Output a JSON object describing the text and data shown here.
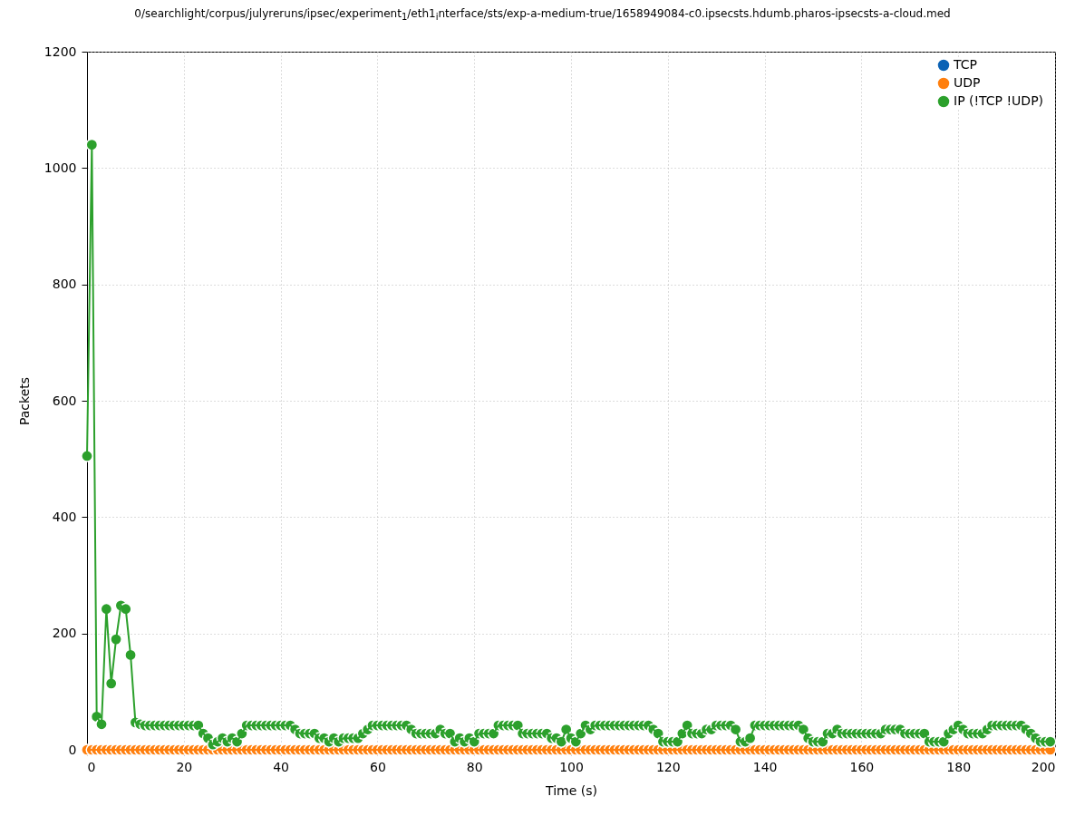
{
  "chart_data": {
    "type": "line",
    "title": "0/searchlight/corpus/julyreruns/ipsec/experiment$_{1}$/eth1$_{i}$nterface/sts/exp-a-medium-true/1658949084-c0.ipsecsts.hdumb.pharos-ipsecsts-a-cloud.med",
    "xlabel": "Time (s)",
    "ylabel": "Packets",
    "x": [
      0,
      1,
      2,
      3,
      4,
      5,
      6,
      7,
      8,
      9,
      10,
      11,
      12,
      13,
      14,
      15,
      16,
      17,
      18,
      19,
      20,
      21,
      22,
      23,
      24,
      25,
      26,
      27,
      28,
      29,
      30,
      31,
      32,
      33,
      34,
      35,
      36,
      37,
      38,
      39,
      40,
      41,
      42,
      43,
      44,
      45,
      46,
      47,
      48,
      49,
      50,
      51,
      52,
      53,
      54,
      55,
      56,
      57,
      58,
      59,
      60,
      61,
      62,
      63,
      64,
      65,
      66,
      67,
      68,
      69,
      70,
      71,
      72,
      73,
      74,
      75,
      76,
      77,
      78,
      79,
      80,
      81,
      82,
      83,
      84,
      85,
      86,
      87,
      88,
      89,
      90,
      91,
      92,
      93,
      94,
      95,
      96,
      97,
      98,
      99,
      100,
      101,
      102,
      103,
      104,
      105,
      106,
      107,
      108,
      109,
      110,
      111,
      112,
      113,
      114,
      115,
      116,
      117,
      118,
      119,
      120,
      121,
      122,
      123,
      124,
      125,
      126,
      127,
      128,
      129,
      130,
      131,
      132,
      133,
      134,
      135,
      136,
      137,
      138,
      139,
      140,
      141,
      142,
      143,
      144,
      145,
      146,
      147,
      148,
      149,
      150,
      151,
      152,
      153,
      154,
      155,
      156,
      157,
      158,
      159,
      160,
      161,
      162,
      163,
      164,
      165,
      166,
      167,
      168,
      169,
      170,
      171,
      172,
      173,
      174,
      175,
      176,
      177,
      178,
      179,
      180,
      181,
      182,
      183,
      184,
      185,
      186,
      187,
      188,
      189,
      190,
      191,
      192,
      193,
      194,
      195,
      196,
      197,
      198,
      199
    ],
    "series": [
      {
        "name": "TCP",
        "color": "#0b62b5",
        "values": [
          null,
          null,
          null,
          null,
          null,
          null,
          null,
          null,
          null,
          null,
          null,
          null,
          null,
          null,
          null,
          null,
          null,
          null,
          null,
          null,
          null,
          null,
          null,
          null,
          null,
          null,
          null,
          null,
          null,
          null,
          null,
          null,
          null,
          null,
          null,
          null,
          null,
          null,
          null,
          null,
          null,
          null,
          null,
          null,
          null,
          null,
          null,
          null,
          null,
          null,
          null,
          null,
          null,
          null,
          null,
          null,
          null,
          null,
          null,
          null,
          null,
          null,
          null,
          null,
          null,
          null,
          null,
          null,
          null,
          null,
          null,
          null,
          null,
          null,
          null,
          null,
          null,
          null,
          null,
          null,
          null,
          null,
          null,
          null,
          null,
          null,
          null,
          null,
          null,
          null,
          null,
          null,
          null,
          null,
          null,
          null,
          null,
          null,
          null,
          null,
          null,
          null,
          null,
          null,
          null,
          null,
          null,
          null,
          null,
          null,
          null,
          null,
          null,
          null,
          null,
          null,
          null,
          null,
          null,
          null,
          null,
          null,
          null,
          null,
          null,
          null,
          null,
          null,
          null,
          null,
          null,
          null,
          null,
          null,
          null,
          null,
          null,
          null,
          null,
          null,
          null,
          null,
          null,
          null,
          null,
          null,
          null,
          null,
          null,
          null,
          null,
          null,
          null,
          null,
          null,
          null,
          null,
          null,
          null,
          null,
          null,
          null,
          null,
          null,
          null,
          null,
          null,
          null,
          null,
          null,
          null,
          null,
          null,
          null,
          null,
          null,
          null,
          null,
          null,
          null,
          null,
          null,
          null,
          null,
          null,
          null,
          null,
          null,
          null,
          null,
          null,
          null,
          null,
          null,
          null,
          null,
          null,
          null,
          null,
          null
        ]
      },
      {
        "name": "UDP",
        "color": "#ff7f0e",
        "values": [
          0,
          0,
          0,
          0,
          0,
          0,
          0,
          0,
          0,
          0,
          0,
          0,
          0,
          0,
          0,
          0,
          0,
          0,
          0,
          0,
          0,
          0,
          0,
          0,
          0,
          0,
          0,
          0,
          0,
          0,
          0,
          0,
          0,
          0,
          0,
          0,
          0,
          0,
          0,
          0,
          0,
          0,
          0,
          0,
          0,
          0,
          0,
          0,
          0,
          0,
          0,
          0,
          0,
          0,
          0,
          0,
          0,
          0,
          0,
          0,
          0,
          0,
          0,
          0,
          0,
          0,
          0,
          0,
          0,
          0,
          0,
          0,
          0,
          0,
          0,
          0,
          0,
          0,
          0,
          0,
          0,
          0,
          0,
          0,
          0,
          0,
          0,
          0,
          0,
          0,
          0,
          0,
          0,
          0,
          0,
          0,
          0,
          0,
          0,
          0,
          0,
          0,
          0,
          0,
          0,
          0,
          0,
          0,
          0,
          0,
          0,
          0,
          0,
          0,
          0,
          0,
          0,
          0,
          0,
          0,
          0,
          0,
          0,
          0,
          0,
          0,
          0,
          0,
          0,
          0,
          0,
          0,
          0,
          0,
          0,
          0,
          0,
          0,
          0,
          0,
          0,
          0,
          0,
          0,
          0,
          0,
          0,
          0,
          0,
          0,
          0,
          0,
          0,
          0,
          0,
          0,
          0,
          0,
          0,
          0,
          0,
          0,
          0,
          0,
          0,
          0,
          0,
          0,
          0,
          0,
          0,
          0,
          0,
          0,
          0,
          0,
          0,
          0,
          0,
          0,
          0,
          0,
          0,
          0,
          0,
          0,
          0,
          0,
          0,
          0,
          0,
          0,
          0,
          0,
          0,
          0,
          0,
          0,
          0,
          0
        ]
      },
      {
        "name": "IP (!TCP  !UDP)",
        "color": "#2ca02c",
        "values": [
          505,
          1040,
          57,
          44,
          242,
          114,
          190,
          248,
          242,
          163,
          47,
          44,
          42,
          42,
          42,
          42,
          42,
          42,
          42,
          42,
          42,
          42,
          42,
          42,
          28,
          20,
          9,
          14,
          20,
          14,
          20,
          14,
          28,
          42,
          42,
          42,
          42,
          42,
          42,
          42,
          42,
          42,
          42,
          35,
          28,
          28,
          28,
          28,
          20,
          20,
          14,
          20,
          14,
          20,
          20,
          20,
          20,
          28,
          35,
          42,
          42,
          42,
          42,
          42,
          42,
          42,
          42,
          35,
          28,
          28,
          28,
          28,
          28,
          35,
          28,
          28,
          14,
          20,
          14,
          20,
          14,
          28,
          28,
          28,
          28,
          42,
          42,
          42,
          42,
          42,
          28,
          28,
          28,
          28,
          28,
          28,
          20,
          20,
          14,
          35,
          20,
          14,
          28,
          42,
          35,
          42,
          42,
          42,
          42,
          42,
          42,
          42,
          42,
          42,
          42,
          42,
          42,
          35,
          28,
          14,
          14,
          14,
          14,
          28,
          42,
          28,
          28,
          28,
          35,
          35,
          42,
          42,
          42,
          42,
          35,
          14,
          14,
          20,
          42,
          42,
          42,
          42,
          42,
          42,
          42,
          42,
          42,
          42,
          35,
          20,
          14,
          14,
          14,
          28,
          28,
          35,
          28,
          28,
          28,
          28,
          28,
          28,
          28,
          28,
          28,
          35,
          35,
          35,
          35,
          28,
          28,
          28,
          28,
          28,
          14,
          14,
          14,
          14,
          28,
          35,
          42,
          35,
          28,
          28,
          28,
          28,
          35,
          42,
          42,
          42,
          42,
          42,
          42,
          42,
          35,
          28,
          20,
          14,
          14,
          14
        ]
      }
    ],
    "xlim": [
      0,
      200
    ],
    "xticks": [
      0,
      20,
      40,
      60,
      80,
      100,
      120,
      140,
      160,
      180,
      200
    ],
    "ylim": [
      0,
      1200
    ],
    "yticks": [
      0,
      200,
      400,
      600,
      800,
      1000,
      1200
    ],
    "grid": true,
    "legend": "top right",
    "marker": "circle",
    "line_style": "solid"
  }
}
